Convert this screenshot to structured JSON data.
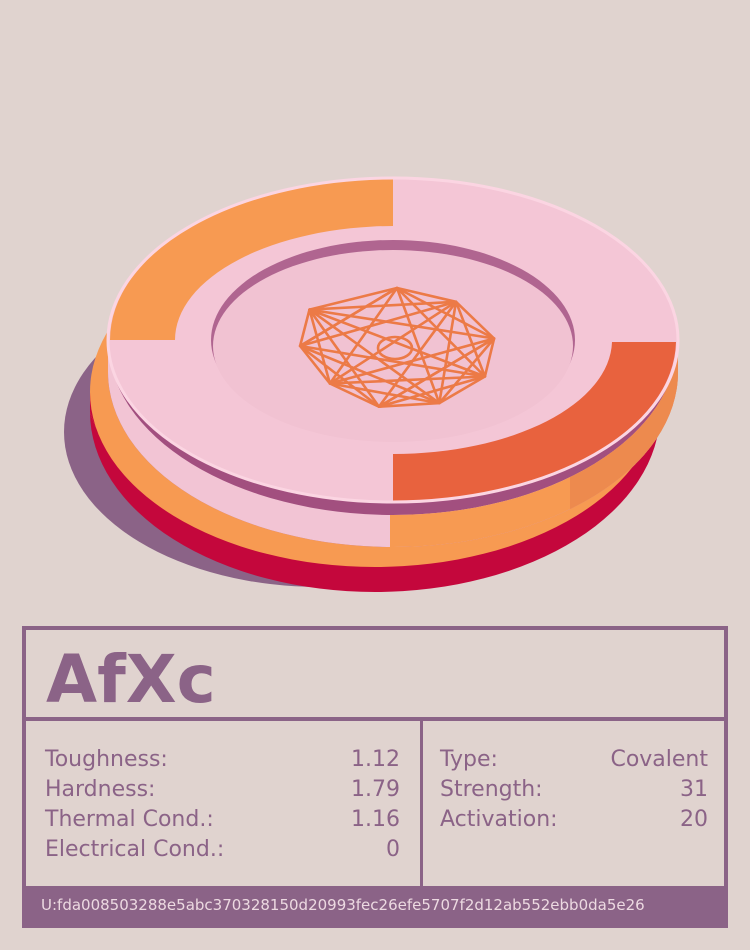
{
  "card": {
    "title": "AfXc",
    "properties_left": [
      {
        "label": "Toughness:",
        "value": "1.12"
      },
      {
        "label": "Hardness:",
        "value": "1.79"
      },
      {
        "label": "Thermal Cond.:",
        "value": "1.16"
      },
      {
        "label": "Electrical Cond.:",
        "value": "0"
      }
    ],
    "properties_right": [
      {
        "label": "Type:",
        "value": "Covalent"
      },
      {
        "label": "Strength:",
        "value": "31"
      },
      {
        "label": "Activation:",
        "value": "20"
      }
    ],
    "footer_id": "U:fda008503288e5abc370328150d20993fec26efe5707f2d12ab552ebb0da5e26"
  },
  "colors": {
    "background": "#e0d3cf",
    "accent": "#8b6387",
    "chip_top": "#f4c6d6",
    "chip_orange": "#f79a52",
    "chip_red_orange": "#e8623e",
    "chip_yellow": "#ffba56",
    "chip_crimson": "#c4073c",
    "shadow": "#8b6387"
  },
  "icons": {
    "emblem": "nonagram-icon"
  }
}
